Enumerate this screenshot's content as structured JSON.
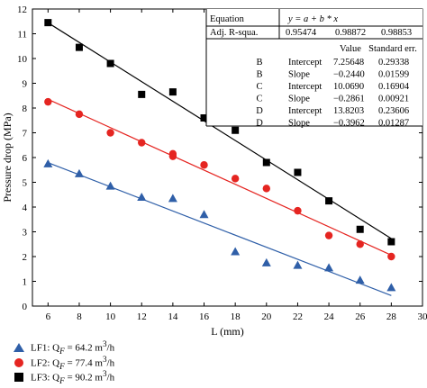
{
  "chart_data": {
    "type": "scatter",
    "xlabel": "L (mm)",
    "ylabel": "Pressure drop (MPa)",
    "xlim": [
      5,
      30
    ],
    "ylim": [
      0,
      12
    ],
    "x_ticks": [
      "6",
      "8",
      "10",
      "12",
      "14",
      "16",
      "18",
      "20",
      "22",
      "24",
      "26",
      "28",
      "30"
    ],
    "y_ticks": [
      "0",
      "1",
      "2",
      "3",
      "4",
      "5",
      "6",
      "7",
      "8",
      "9",
      "10",
      "11",
      "12"
    ],
    "series": [
      {
        "name": "LF1: Q_F = 64.2 m³/h",
        "marker": "triangle",
        "color": "#2f5fa8",
        "x": [
          6,
          8,
          10,
          12,
          14,
          16,
          18,
          20,
          22,
          24,
          26,
          28
        ],
        "y": [
          5.75,
          5.35,
          4.85,
          4.4,
          4.35,
          3.7,
          2.2,
          1.75,
          1.65,
          1.55,
          1.05,
          0.75
        ],
        "fit": {
          "intercept": 7.25648,
          "slope": -0.244
        }
      },
      {
        "name": "LF2: Q_F = 77.4 m³/h",
        "marker": "circle",
        "color": "#e52521",
        "x": [
          6,
          8,
          10,
          12,
          14,
          14,
          16,
          18,
          20,
          22,
          24,
          26,
          28
        ],
        "y": [
          8.25,
          7.75,
          7.0,
          6.6,
          6.15,
          6.05,
          5.7,
          5.15,
          4.75,
          3.85,
          2.85,
          2.5,
          2.0
        ],
        "fit": {
          "intercept": 10.069,
          "slope": -0.2861
        }
      },
      {
        "name": "LF3: Q_F = 90.2 m³/h",
        "marker": "square",
        "color": "#000000",
        "x": [
          6,
          8,
          10,
          12,
          14,
          16,
          18,
          20,
          22,
          24,
          26,
          28
        ],
        "y": [
          11.45,
          10.45,
          9.8,
          8.55,
          8.65,
          7.6,
          7.1,
          5.8,
          5.4,
          4.25,
          3.1,
          2.6
        ],
        "fit": {
          "intercept": 13.8203,
          "slope": -0.3962
        }
      }
    ],
    "table": {
      "equation_label": "Equation",
      "equation": "y = a + b * x",
      "adjr_label": "Adj. R-squa.",
      "adjr_values": [
        "0.95474",
        "0.98872",
        "0.98853"
      ],
      "col_value": "Value",
      "col_stderr": "Standard err.",
      "rows": [
        [
          "B",
          "Intercept",
          "7.25648",
          "0.29338"
        ],
        [
          "B",
          "Slope",
          "−0.2440",
          "0.01599"
        ],
        [
          "C",
          "Intercept",
          "10.0690",
          "0.16904"
        ],
        [
          "C",
          "Slope",
          "−0.2861",
          "0.00921"
        ],
        [
          "D",
          "Intercept",
          "13.8203",
          "0.23606"
        ],
        [
          "D",
          "Slope",
          "−0.3962",
          "0.01287"
        ]
      ]
    }
  },
  "legend": [
    {
      "label": "LF1: Q",
      "sub": "F",
      "rest": " = 64.2 m",
      "sup": "3",
      "end": "/h"
    },
    {
      "label": "LF2: Q",
      "sub": "F",
      "rest": " = 77.4 m",
      "sup": "3",
      "end": "/h"
    },
    {
      "label": "LF3: Q",
      "sub": "F",
      "rest": " = 90.2 m",
      "sup": "3",
      "end": "/h"
    }
  ]
}
